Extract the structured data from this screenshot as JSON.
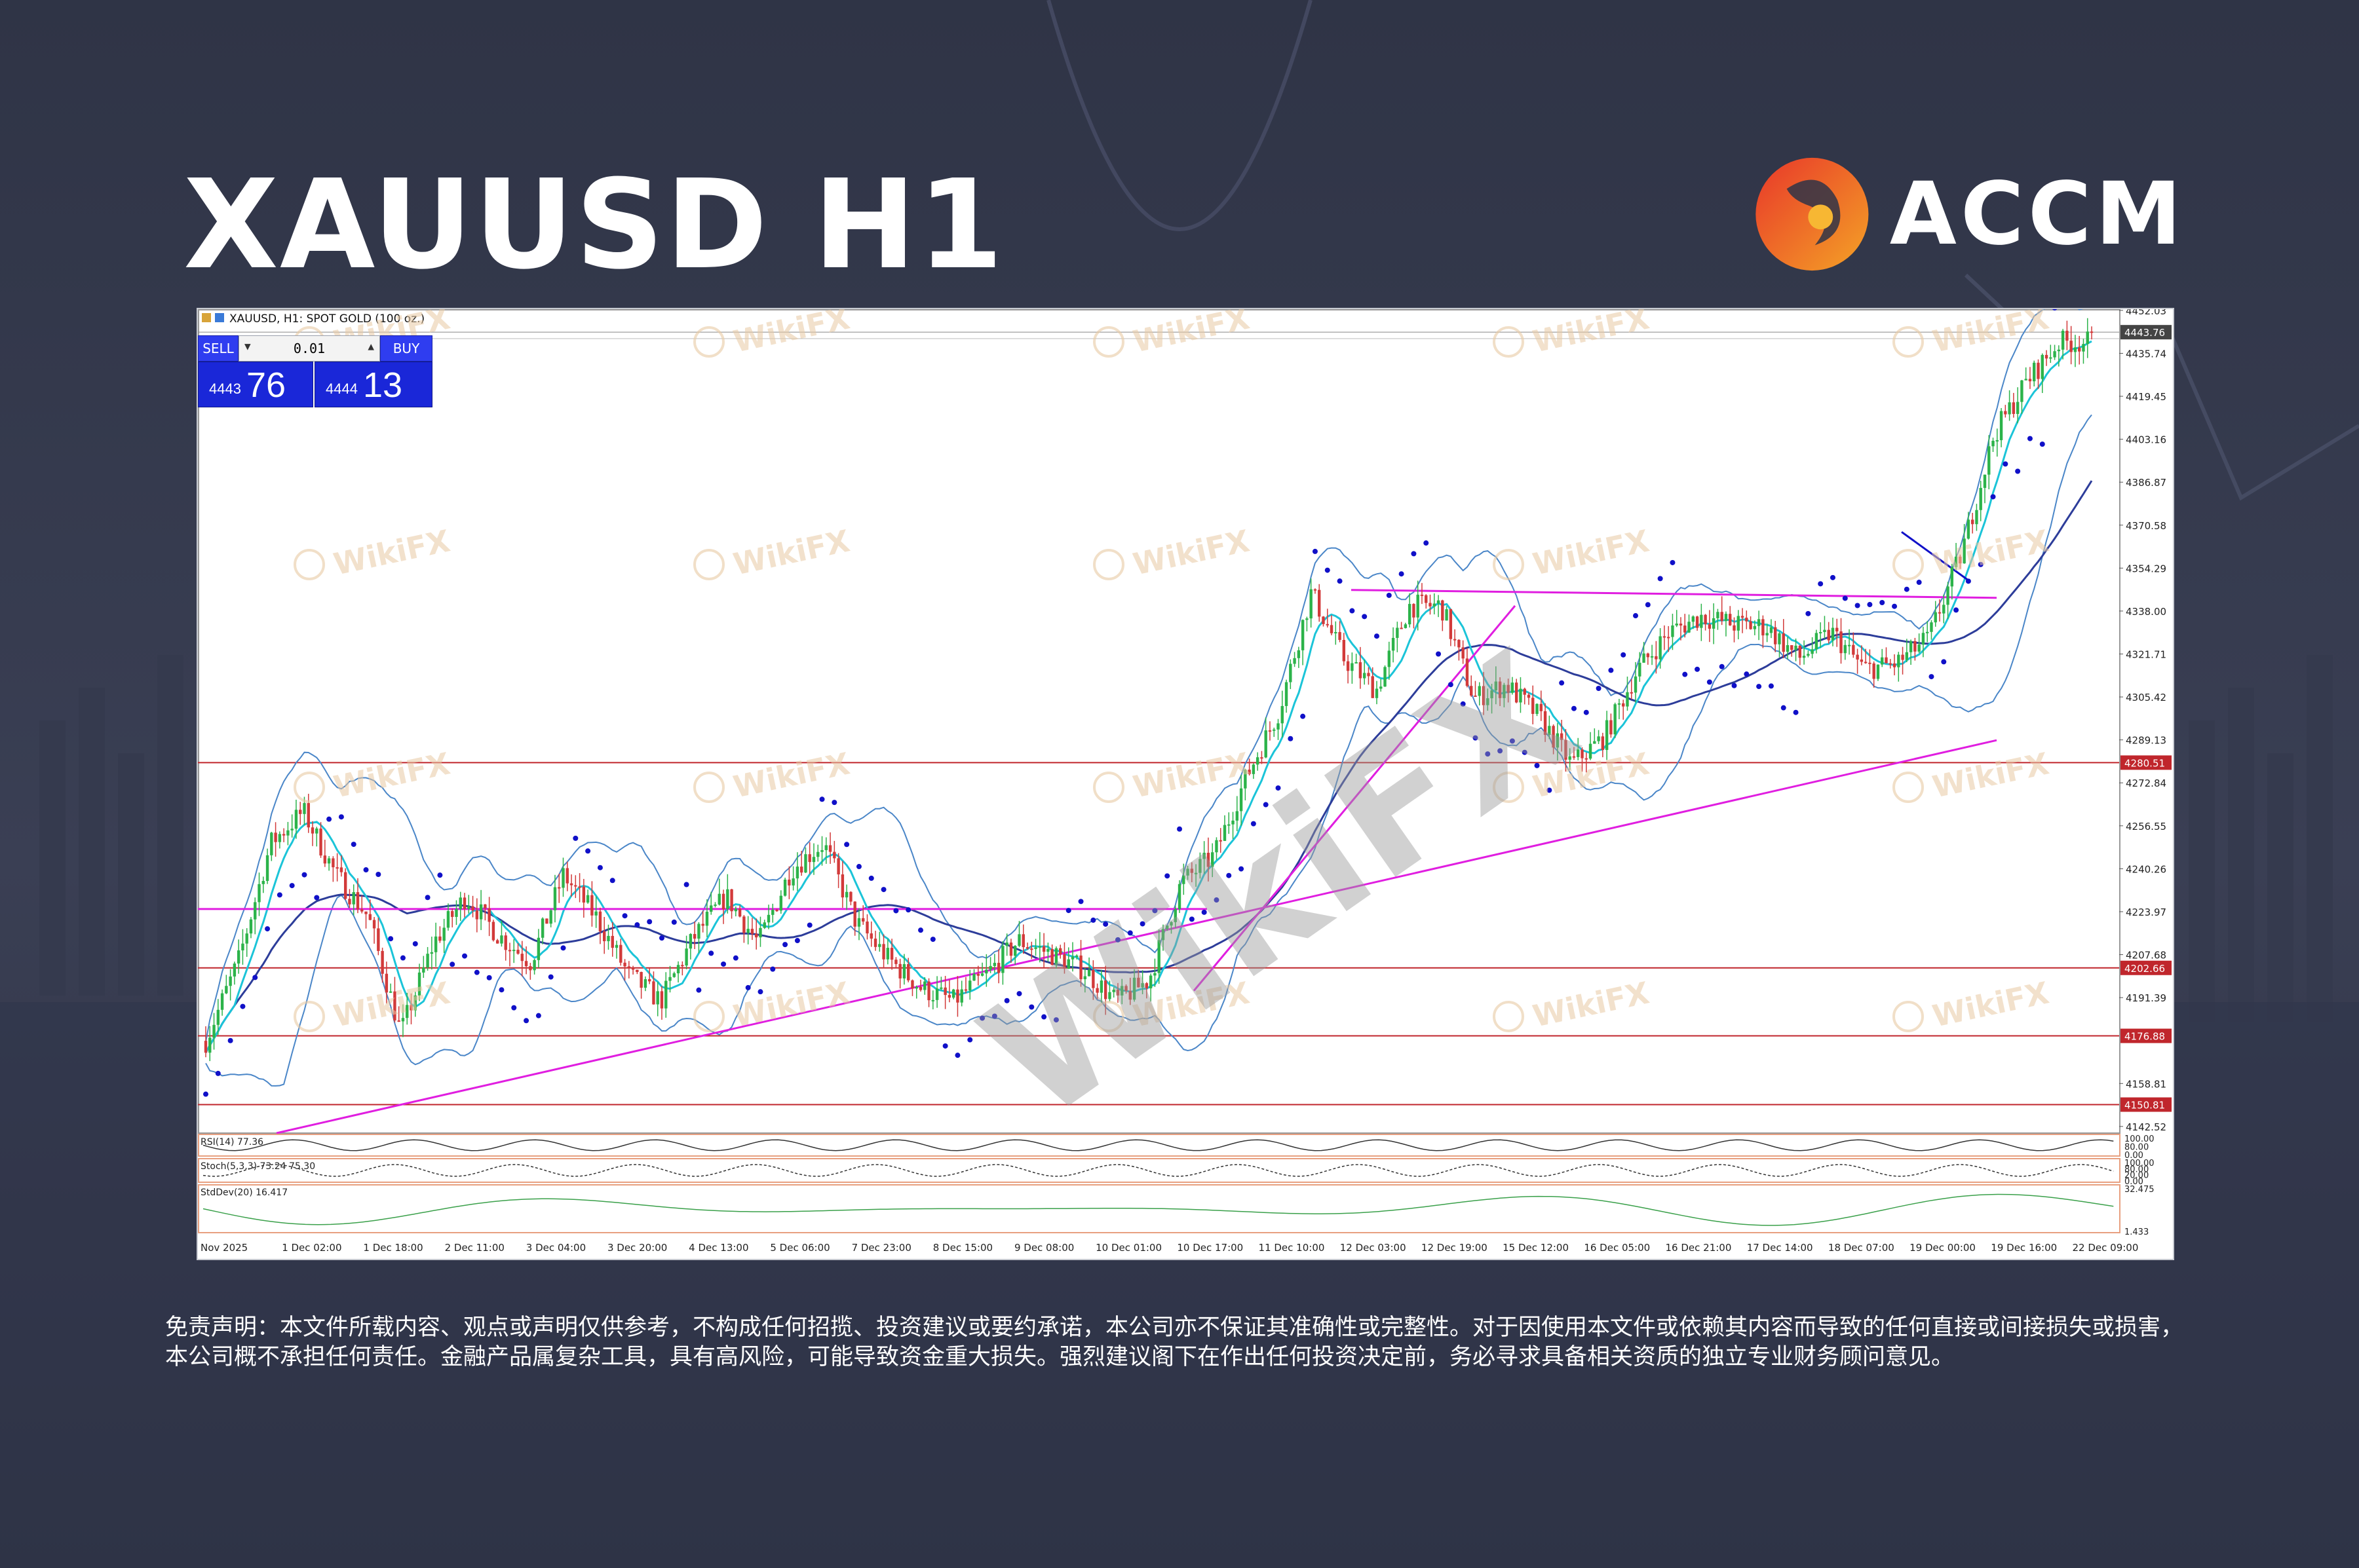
{
  "title": "XAUUSD H1",
  "brand": {
    "name": "ACCM",
    "logo": "accm-flame-logo"
  },
  "watermark": {
    "text": "WikiFX",
    "icon": "wikifx-logo-icon"
  },
  "chart_header": {
    "symbol_label": "XAUUSD, H1:  SPOT GOLD (100 oz.)",
    "icon": "chart-window-icon"
  },
  "trade_panel": {
    "sell_label": "SELL",
    "buy_label": "BUY",
    "lot_value": "0.01",
    "sell_price_small": "4443",
    "sell_price_big": "76",
    "buy_price_small": "4444",
    "buy_price_big": "13"
  },
  "colors": {
    "bull": "#2cb34a",
    "bear": "#d23a3a",
    "sar": "#1010c8",
    "ma_fast": "#1bc4d8",
    "ma_slow": "#2d3d9a",
    "bollinger": "#4a86c8",
    "trendline": "#e01ee0",
    "level": "#c0262c"
  },
  "chart_data": {
    "type": "line",
    "subtype": "candlestick",
    "ylim": [
      4140,
      4452
    ],
    "price_ticks": [
      "4452.03",
      "4435.74",
      "4419.45",
      "4403.16",
      "4386.87",
      "4370.58",
      "4354.29",
      "4338.00",
      "4321.71",
      "4305.42",
      "4289.13",
      "4272.84",
      "4256.55",
      "4240.26",
      "4223.97",
      "4207.68",
      "4191.39",
      "4158.81",
      "4142.52"
    ],
    "current_price": "4443.76",
    "levels": [
      "4280.51",
      "4202.66",
      "4176.88",
      "4150.81"
    ],
    "time_labels": [
      "Nov 2025",
      "1 Dec 02:00",
      "1 Dec 18:00",
      "2 Dec 11:00",
      "3 Dec 04:00",
      "3 Dec 20:00",
      "4 Dec 13:00",
      "5 Dec 06:00",
      "7 Dec 23:00",
      "8 Dec 15:00",
      "9 Dec 08:00",
      "10 Dec 01:00",
      "10 Dec 17:00",
      "11 Dec 10:00",
      "12 Dec 03:00",
      "12 Dec 19:00",
      "15 Dec 12:00",
      "16 Dec 05:00",
      "16 Dec 21:00",
      "17 Dec 14:00",
      "18 Dec 07:00",
      "19 Dec 00:00",
      "19 Dec 16:00",
      "22 Dec 09:00"
    ],
    "path_points": [
      4175,
      4205,
      4250,
      4262,
      4238,
      4222,
      4178,
      4212,
      4230,
      4215,
      4205,
      4238,
      4222,
      4200,
      4190,
      4214,
      4230,
      4212,
      4240,
      4250,
      4220,
      4206,
      4195,
      4190,
      4200,
      4213,
      4208,
      4202,
      4190,
      4198,
      4235,
      4245,
      4275,
      4300,
      4345,
      4320,
      4308,
      4340,
      4340,
      4305,
      4310,
      4298,
      4280,
      4290,
      4315,
      4330,
      4336,
      4333,
      4332,
      4320,
      4330,
      4316,
      4318,
      4328,
      4360,
      4405,
      4425,
      4440,
      4440
    ],
    "indicators": [
      {
        "name": "RSI(14)",
        "label": "RSI(14) 77.36",
        "ticks": [
          "100.00",
          "80.00",
          "0.00"
        ]
      },
      {
        "name": "Stoch(5,3,3)",
        "label": "Stoch(5,3,3) 73.24 75.30",
        "ticks": [
          "100.00",
          "80.00",
          "20.00",
          "0.00"
        ]
      },
      {
        "name": "StdDev(20)",
        "label": "StdDev(20) 16.417",
        "ticks": [
          "32.475",
          "1.433"
        ]
      }
    ]
  },
  "disclaimer": "免责声明：本文件所载内容、观点或声明仅供参考，不构成任何招揽、投资建议或要约承诺，本公司亦不保证其准确性或完整性。对于因使用本文件或依赖其内容而导致的任何直接或间接损失或损害，本公司概不承担任何责任。金融产品属复杂工具，具有高风险，可能导致资金重大损失。强烈建议阁下在作出任何投资决定前，务必寻求具备相关资质的独立专业财务顾问意见。"
}
